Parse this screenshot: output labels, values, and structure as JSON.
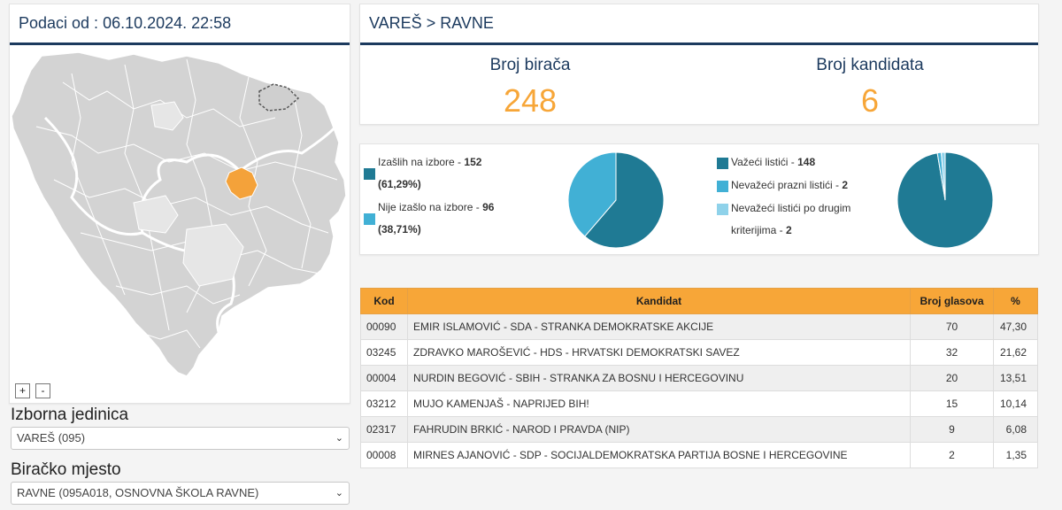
{
  "left_panel": {
    "header": "Podaci od : 06.10.2024. 22:58",
    "zoom_in": "+",
    "zoom_out": "-",
    "unit_label": "Izborna jedinica",
    "unit_value": "VAREŠ (095)",
    "station_label": "Biračko mjesto",
    "station_value": "RAVNE (095A018, OSNOVNA ŠKOLA RAVNE)"
  },
  "breadcrumb": "VAREŠ > RAVNE",
  "stats": {
    "voters_label": "Broj birača",
    "voters_value": "248",
    "candidates_label": "Broj kandidata",
    "candidates_value": "6"
  },
  "turnout": {
    "items": [
      {
        "label": "Izašlih na izbore - ",
        "count": "152",
        "pct": "(61,29%)",
        "color": "#1f7a94",
        "value": 152
      },
      {
        "label": "Nije izašlo na izbore - ",
        "count": "96",
        "pct": "(38,71%)",
        "color": "#41b0d5",
        "value": 96
      }
    ]
  },
  "ballots": {
    "items": [
      {
        "label": "Važeći listići - ",
        "count": "148",
        "color": "#1f7a94",
        "value": 148
      },
      {
        "label": "Nevažeći prazni listići - ",
        "count": "2",
        "color": "#41b0d5",
        "value": 2
      },
      {
        "label1": "Nevažeći listići po drugim",
        "label2": "kriterijima - ",
        "count": "2",
        "color": "#8fd2ea",
        "value": 2
      }
    ]
  },
  "colors": {
    "accent": "#f7a638",
    "navy": "#1c3a5e",
    "teal_dark": "#1f7a94",
    "teal": "#41b0d5",
    "teal_light": "#8fd2ea",
    "map_highlight": "#f4a23a"
  },
  "table": {
    "headers": [
      "Kod",
      "Kandidat",
      "Broj glasova",
      "%"
    ],
    "rows": [
      [
        "00090",
        "EMIR ISLAMOVIĆ - SDA - STRANKA DEMOKRATSKE AKCIJE",
        "70",
        "47,30"
      ],
      [
        "03245",
        "ZDRAVKO MAROŠEVIĆ - HDS - HRVATSKI DEMOKRATSKI SAVEZ",
        "32",
        "21,62"
      ],
      [
        "00004",
        "NURDIN BEGOVIĆ - SBIH - STRANKA ZA BOSNU I HERCEGOVINU",
        "20",
        "13,51"
      ],
      [
        "03212",
        "MUJO KAMENJAŠ - NAPRIJED BIH!",
        "15",
        "10,14"
      ],
      [
        "02317",
        "FAHRUDIN BRKIĆ - NAROD I PRAVDA (NIP)",
        "9",
        "6,08"
      ],
      [
        "00008",
        "MIRNES AJANOVIĆ - SDP - SOCIJALDEMOKRATSKA PARTIJA BOSNE I HERCEGOVINE",
        "2",
        "1,35"
      ]
    ]
  }
}
